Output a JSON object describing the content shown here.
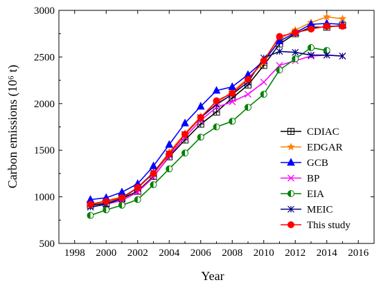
{
  "chart_data": {
    "type": "line",
    "xlabel": "Year",
    "ylabel": "Carbon emissions (10⁶ t)",
    "xlim": [
      1997,
      2017
    ],
    "ylim": [
      500,
      3000
    ],
    "xticks": [
      1998,
      2000,
      2002,
      2004,
      2006,
      2008,
      2010,
      2012,
      2014,
      2016
    ],
    "yticks": [
      500,
      1000,
      1500,
      2000,
      2500,
      3000
    ],
    "grid": false,
    "legend": "right",
    "series": [
      {
        "name": "CDIAC",
        "color": "#000000",
        "marker": "square-cross",
        "x": [
          1999,
          2000,
          2001,
          2002,
          2003,
          2004,
          2005,
          2006,
          2007,
          2008,
          2009,
          2010,
          2011,
          2012,
          2013,
          2014,
          2015
        ],
        "values": [
          910,
          930,
          980,
          1060,
          1220,
          1430,
          1610,
          1780,
          1910,
          2060,
          2200,
          2410,
          2640,
          2750,
          2820,
          2820,
          2840
        ]
      },
      {
        "name": "EDGAR",
        "color": "#FF7F00",
        "marker": "star",
        "x": [
          1999,
          2000,
          2001,
          2002,
          2003,
          2004,
          2005,
          2006,
          2007,
          2008,
          2009,
          2010,
          2011,
          2012,
          2013,
          2014,
          2015
        ],
        "values": [
          920,
          960,
          1000,
          1090,
          1260,
          1480,
          1680,
          1860,
          2000,
          2130,
          2270,
          2440,
          2690,
          2790,
          2870,
          2930,
          2910
        ]
      },
      {
        "name": "GCB",
        "color": "#0000FF",
        "marker": "triangle",
        "x": [
          1999,
          2000,
          2001,
          2002,
          2003,
          2004,
          2005,
          2006,
          2007,
          2008,
          2009,
          2010,
          2011,
          2012,
          2013,
          2014,
          2015
        ],
        "values": [
          970,
          990,
          1050,
          1140,
          1330,
          1560,
          1790,
          1970,
          2140,
          2180,
          2310,
          2460,
          2670,
          2760,
          2850,
          2860,
          2850
        ]
      },
      {
        "name": "BP",
        "color": "#FF00FF",
        "marker": "x",
        "x": [
          1999,
          2000,
          2001,
          2002,
          2003,
          2004,
          2005,
          2006,
          2007,
          2008,
          2009,
          2010,
          2011,
          2012,
          2013,
          2014,
          2015
        ],
        "values": [
          890,
          920,
          960,
          1050,
          1210,
          1440,
          1640,
          1820,
          1960,
          2020,
          2100,
          2230,
          2410,
          2460,
          2510,
          2520,
          2510
        ]
      },
      {
        "name": "EIA",
        "color": "#008000",
        "marker": "half-circle",
        "x": [
          1999,
          2000,
          2001,
          2002,
          2003,
          2004,
          2005,
          2006,
          2007,
          2008,
          2009,
          2010,
          2011,
          2012,
          2013,
          2014
        ],
        "values": [
          800,
          860,
          910,
          970,
          1130,
          1300,
          1470,
          1640,
          1750,
          1810,
          1960,
          2100,
          2360,
          2480,
          2600,
          2570
        ]
      },
      {
        "name": "MEIC",
        "color": "#000080",
        "marker": "asterisk",
        "x": [
          1999,
          2000,
          2001,
          2002,
          2003,
          2004,
          2005,
          2006,
          2007,
          2008,
          2009,
          2010,
          2011,
          2012,
          2013,
          2014,
          2015
        ],
        "values": [
          890,
          920,
          980,
          1100,
          1260,
          1460,
          1670,
          1850,
          1990,
          2100,
          2230,
          2490,
          2560,
          2550,
          2520,
          2520,
          2510
        ]
      },
      {
        "name": "This study",
        "color": "#FF0000",
        "marker": "circle",
        "x": [
          1999,
          2000,
          2001,
          2002,
          2003,
          2004,
          2005,
          2006,
          2007,
          2008,
          2009,
          2010,
          2011,
          2012,
          2013,
          2014,
          2015
        ],
        "values": [
          920,
          950,
          990,
          1100,
          1250,
          1460,
          1670,
          1850,
          2030,
          2110,
          2260,
          2460,
          2720,
          2760,
          2800,
          2830,
          2830
        ]
      }
    ]
  }
}
